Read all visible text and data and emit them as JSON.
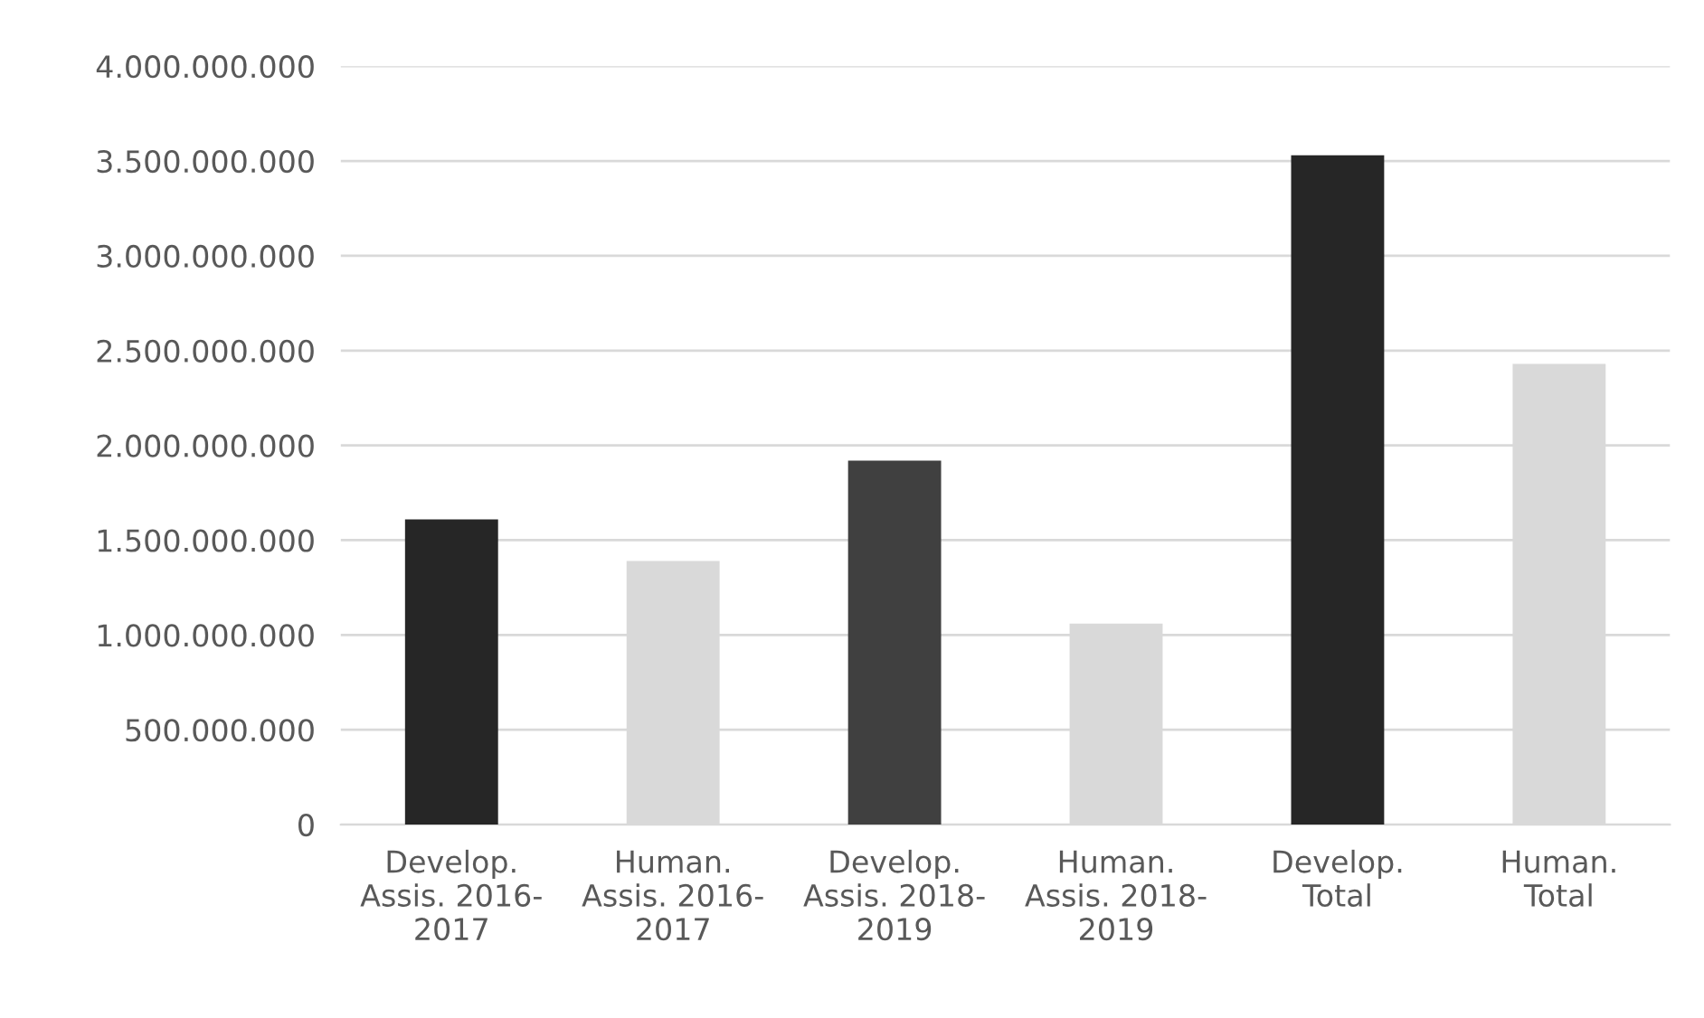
{
  "chart_data": {
    "type": "bar",
    "categories": [
      "Develop.\nAssis. 2016-\n2017",
      "Human.\nAssis. 2016-\n2017",
      "Develop.\nAssis. 2018-\n2019",
      "Human.\nAssis. 2018-\n2019",
      "Develop.\nTotal",
      "Human.\nTotal"
    ],
    "values": [
      1610000000,
      1390000000,
      1920000000,
      1060000000,
      3530000000,
      2430000000
    ],
    "colors": [
      "#262626",
      "#d9d9d9",
      "#404040",
      "#d9d9d9",
      "#262626",
      "#d9d9d9"
    ],
    "ylim": [
      0,
      4000000000
    ],
    "yticks": [
      {
        "value": 0,
        "label": "0"
      },
      {
        "value": 500000000,
        "label": "500.000.000"
      },
      {
        "value": 1000000000,
        "label": "1.000.000.000"
      },
      {
        "value": 1500000000,
        "label": "1.500.000.000"
      },
      {
        "value": 2000000000,
        "label": "2.000.000.000"
      },
      {
        "value": 2500000000,
        "label": "2.500.000.000"
      },
      {
        "value": 3000000000,
        "label": "3.000.000.000"
      },
      {
        "value": 3500000000,
        "label": "3.500.000.000"
      },
      {
        "value": 4000000000,
        "label": "4.000.000.000"
      }
    ],
    "grid": "y"
  }
}
